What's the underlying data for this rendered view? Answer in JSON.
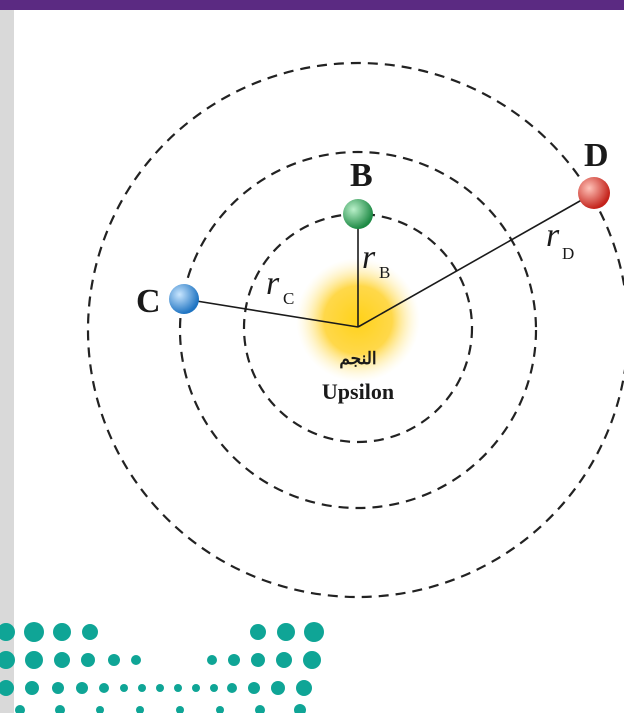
{
  "colors": {
    "top_bar": "#5b2a82",
    "star_core": "#ffd21a",
    "star_glow": "#ffe98a",
    "planet_b": "#2ea65a",
    "planet_c": "#2f8fdc",
    "planet_d": "#e0342a",
    "logo_dots": "#0fa596",
    "orbit_stroke": "#222222"
  },
  "diagram": {
    "star": {
      "label_arabic": "النجم",
      "name": "Upsilon"
    },
    "planets": [
      {
        "id": "B",
        "label": "B",
        "radius_label": "r",
        "radius_sub": "B"
      },
      {
        "id": "C",
        "label": "C",
        "radius_label": "r",
        "radius_sub": "C"
      },
      {
        "id": "D",
        "label": "D",
        "radius_label": "r",
        "radius_sub": "D"
      }
    ]
  },
  "logo": {
    "description_icon": "dotted-wave-logo"
  }
}
